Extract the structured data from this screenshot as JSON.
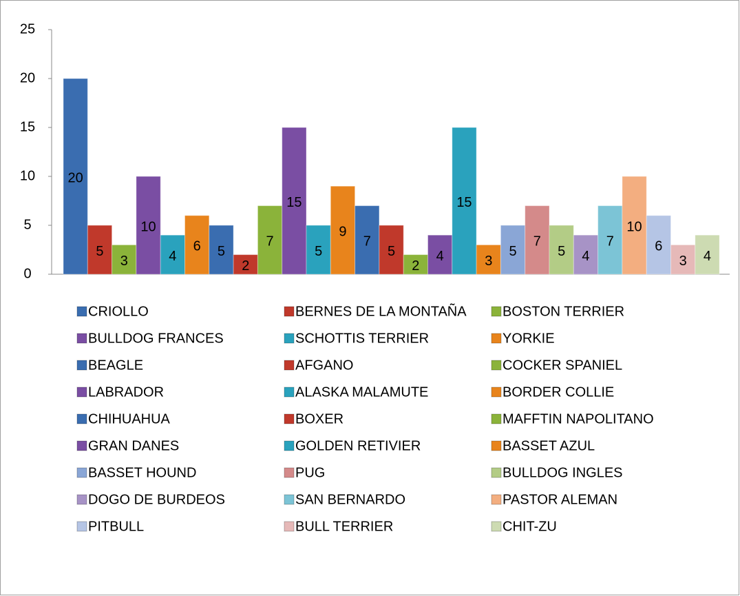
{
  "chart_data": {
    "type": "bar",
    "ylim": [
      0,
      25
    ],
    "yticks": [
      0,
      5,
      10,
      15,
      20,
      25
    ],
    "grid": false,
    "data_labels": true,
    "legend": "bottom",
    "series": [
      {
        "name": "CRIOLLO",
        "color": "#3a6db0",
        "values": [
          20
        ]
      },
      {
        "name": "BERNES DE LA MONTAÑA",
        "color": "#c0392b",
        "values": [
          5
        ]
      },
      {
        "name": "BOSTON TERRIER",
        "color": "#8bb33a",
        "values": [
          3
        ]
      },
      {
        "name": "BULLDOG FRANCES",
        "color": "#7a4ea3",
        "values": [
          10
        ]
      },
      {
        "name": "SCHOTTIS TERRIER",
        "color": "#2aa2bd",
        "values": [
          4
        ]
      },
      {
        "name": "YORKIE",
        "color": "#e8841c",
        "values": [
          6
        ]
      },
      {
        "name": "BEAGLE",
        "color": "#3a6db0",
        "values": [
          5
        ]
      },
      {
        "name": "AFGANO",
        "color": "#c0392b",
        "values": [
          2
        ]
      },
      {
        "name": "COCKER SPANIEL",
        "color": "#8bb33a",
        "values": [
          7
        ]
      },
      {
        "name": "LABRADOR",
        "color": "#7a4ea3",
        "values": [
          15
        ]
      },
      {
        "name": "ALASKA MALAMUTE",
        "color": "#2aa2bd",
        "values": [
          5
        ]
      },
      {
        "name": "BORDER COLLIE",
        "color": "#e8841c",
        "values": [
          9
        ]
      },
      {
        "name": "CHIHUAHUA",
        "color": "#3a6db0",
        "values": [
          7
        ]
      },
      {
        "name": "BOXER",
        "color": "#c0392b",
        "values": [
          5
        ]
      },
      {
        "name": "MAFFTIN NAPOLITANO",
        "color": "#8bb33a",
        "values": [
          2
        ]
      },
      {
        "name": "GRAN DANES",
        "color": "#7a4ea3",
        "values": [
          4
        ]
      },
      {
        "name": "GOLDEN RETIVIER",
        "color": "#2aa2bd",
        "values": [
          15
        ]
      },
      {
        "name": "BASSET AZUL",
        "color": "#e8841c",
        "values": [
          3
        ]
      },
      {
        "name": "BASSET HOUND",
        "color": "#8aa6d6",
        "values": [
          5
        ]
      },
      {
        "name": "PUG",
        "color": "#d48a8a",
        "values": [
          7
        ]
      },
      {
        "name": "BULLDOG INGLES",
        "color": "#b3cc86",
        "values": [
          5
        ]
      },
      {
        "name": "DOGO DE BURDEOS",
        "color": "#a793c6",
        "values": [
          4
        ]
      },
      {
        "name": "SAN BERNARDO",
        "color": "#7cc4d6",
        "values": [
          7
        ]
      },
      {
        "name": "PASTOR ALEMAN",
        "color": "#f3ae80",
        "values": [
          10
        ]
      },
      {
        "name": "PITBULL",
        "color": "#b5c5e5",
        "values": [
          6
        ]
      },
      {
        "name": "BULL TERRIER",
        "color": "#e6b9b8",
        "values": [
          3
        ]
      },
      {
        "name": "CHIT-ZU",
        "color": "#cddbb2",
        "values": [
          4
        ]
      }
    ]
  }
}
